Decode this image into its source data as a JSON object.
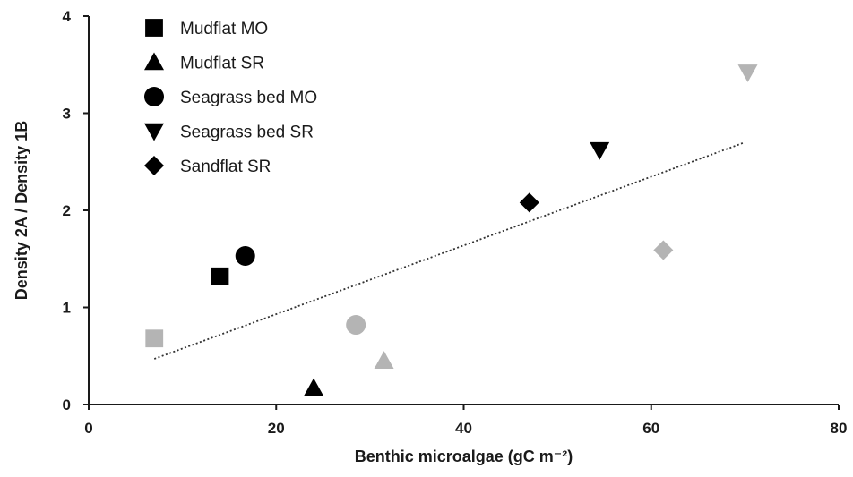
{
  "chart_data": {
    "type": "scatter",
    "xlabel": "Benthic microalgae (gC m⁻²)",
    "ylabel": "Density 2A / Density 1B",
    "xlim": [
      0,
      80
    ],
    "ylim": [
      0,
      4
    ],
    "x_ticks": [
      "0",
      "20",
      "40",
      "60",
      "80"
    ],
    "y_ticks": [
      "0",
      "1",
      "2",
      "3",
      "4"
    ],
    "grid": false,
    "legend_position": "top-left",
    "colors": {
      "filled": "#000000",
      "open": "#b4b4b4",
      "trendline": "#333333"
    },
    "series": [
      {
        "name": "Mudflat MO",
        "marker": "square",
        "points": [
          {
            "x": 14.0,
            "y": 1.32,
            "shade": "filled"
          },
          {
            "x": 7.0,
            "y": 0.68,
            "shade": "open"
          }
        ]
      },
      {
        "name": "Mudflat SR",
        "marker": "triangle-up",
        "points": [
          {
            "x": 24.0,
            "y": 0.17,
            "shade": "filled"
          },
          {
            "x": 31.5,
            "y": 0.45,
            "shade": "open"
          }
        ]
      },
      {
        "name": "Seagrass bed MO",
        "marker": "circle",
        "points": [
          {
            "x": 16.7,
            "y": 1.53,
            "shade": "filled"
          },
          {
            "x": 28.5,
            "y": 0.82,
            "shade": "open"
          }
        ]
      },
      {
        "name": "Seagrass bed SR",
        "marker": "triangle-down",
        "points": [
          {
            "x": 54.5,
            "y": 2.62,
            "shade": "filled"
          },
          {
            "x": 70.3,
            "y": 3.42,
            "shade": "open"
          }
        ]
      },
      {
        "name": "Sandflat SR",
        "marker": "diamond",
        "points": [
          {
            "x": 47.0,
            "y": 2.08,
            "shade": "filled"
          },
          {
            "x": 61.3,
            "y": 1.59,
            "shade": "open"
          }
        ]
      }
    ],
    "trendline": {
      "style": "dotted",
      "from": {
        "x": 7.0,
        "y": 0.47
      },
      "to": {
        "x": 70.0,
        "y": 2.7
      }
    }
  }
}
